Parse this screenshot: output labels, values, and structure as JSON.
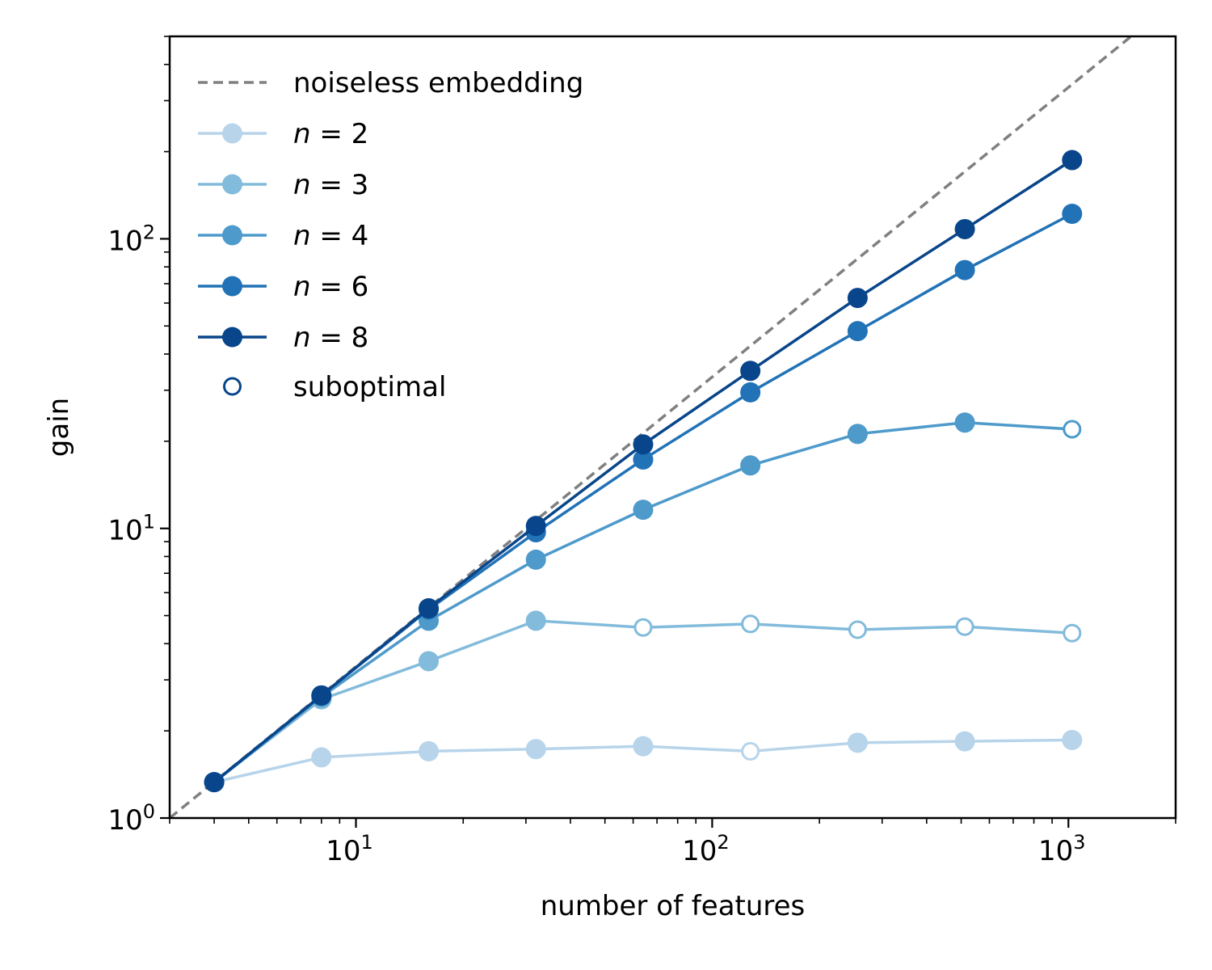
{
  "chart_data": {
    "type": "line",
    "xlabel": "number of features",
    "ylabel": "gain",
    "xscale": "log",
    "yscale": "log",
    "xlim": [
      3,
      2000
    ],
    "ylim": [
      1,
      500
    ],
    "x_ticks": [
      {
        "value": 10,
        "base": "10",
        "exp": "1"
      },
      {
        "value": 100,
        "base": "10",
        "exp": "2"
      },
      {
        "value": 1000,
        "base": "10",
        "exp": "3"
      }
    ],
    "y_ticks": [
      {
        "value": 1,
        "base": "10",
        "exp": "0"
      },
      {
        "value": 10,
        "base": "10",
        "exp": "1"
      },
      {
        "value": 100,
        "base": "10",
        "exp": "2"
      }
    ],
    "grid": false,
    "legend_position": "top-left",
    "reference_line": {
      "name": "noiseless embedding",
      "style": "dashed",
      "color": "#808080",
      "x": [
        3,
        1650
      ],
      "y": [
        1,
        550
      ]
    },
    "suboptimal_label": "suboptimal",
    "series": [
      {
        "name": "n = 2",
        "var": "n",
        "eq": "=",
        "num": "2",
        "color": "#b7d4ea",
        "x": [
          4,
          8,
          16,
          32,
          64,
          128,
          256,
          512,
          1024
        ],
        "y": [
          1.33,
          1.62,
          1.7,
          1.73,
          1.77,
          1.7,
          1.82,
          1.84,
          1.86
        ],
        "suboptimal": [
          false,
          false,
          false,
          false,
          false,
          true,
          false,
          false,
          false
        ]
      },
      {
        "name": "n = 3",
        "var": "n",
        "eq": "=",
        "num": "3",
        "color": "#82bbdb",
        "x": [
          4,
          8,
          16,
          32,
          64,
          128,
          256,
          512,
          1024
        ],
        "y": [
          1.33,
          2.57,
          3.48,
          4.8,
          4.55,
          4.68,
          4.47,
          4.58,
          4.35
        ],
        "suboptimal": [
          false,
          false,
          false,
          false,
          true,
          true,
          true,
          true,
          true
        ]
      },
      {
        "name": "n = 4",
        "var": "n",
        "eq": "=",
        "num": "4",
        "color": "#4d9acb",
        "x": [
          4,
          8,
          16,
          32,
          64,
          128,
          256,
          512,
          1024
        ],
        "y": [
          1.33,
          2.62,
          4.8,
          7.8,
          11.6,
          16.5,
          21.2,
          23.2,
          22.0
        ],
        "suboptimal": [
          false,
          false,
          false,
          false,
          false,
          false,
          false,
          false,
          true
        ]
      },
      {
        "name": "n = 6",
        "var": "n",
        "eq": "=",
        "num": "6",
        "color": "#2172b6",
        "x": [
          4,
          8,
          16,
          32,
          64,
          128,
          256,
          512,
          1024
        ],
        "y": [
          1.33,
          2.65,
          5.25,
          9.7,
          17.3,
          29.5,
          48.0,
          78.0,
          122.0
        ],
        "suboptimal": [
          false,
          false,
          false,
          false,
          false,
          false,
          false,
          false,
          false
        ]
      },
      {
        "name": "n = 8",
        "var": "n",
        "eq": "=",
        "num": "8",
        "color": "#08458a",
        "x": [
          4,
          8,
          16,
          32,
          64,
          128,
          256,
          512,
          1024
        ],
        "y": [
          1.33,
          2.65,
          5.3,
          10.2,
          19.5,
          35.0,
          62.5,
          108.0,
          187.0
        ],
        "suboptimal": [
          false,
          false,
          false,
          false,
          false,
          false,
          false,
          false,
          false
        ]
      }
    ]
  }
}
